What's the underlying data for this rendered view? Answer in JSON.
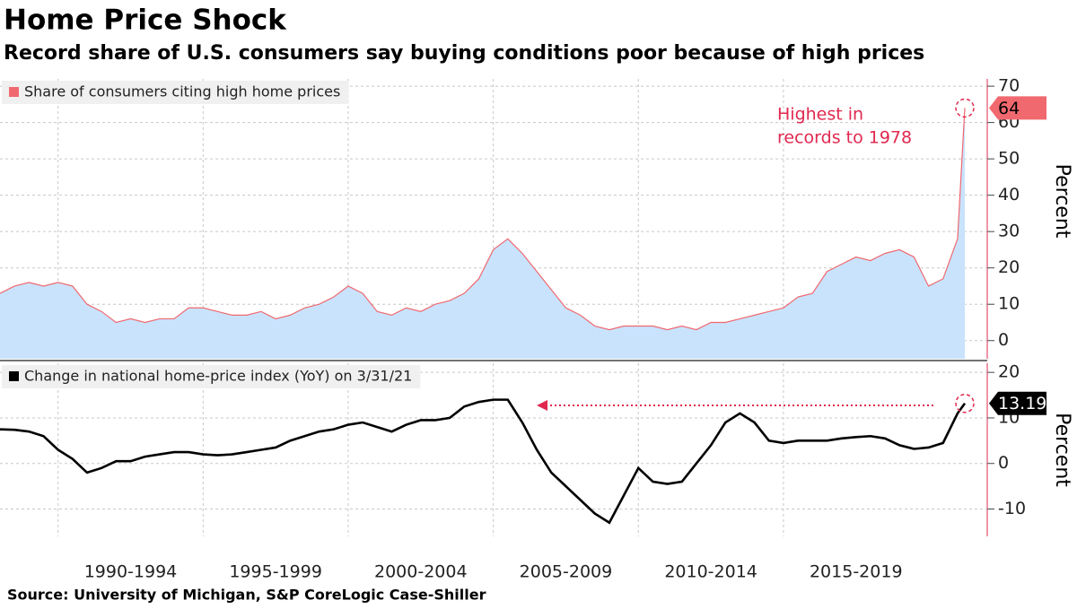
{
  "chart_data": [
    {
      "type": "area",
      "title": "Home Price Shock",
      "subtitle": "Record share of U.S. consumers say buying conditions poor because of high prices",
      "source": "Source: University of Michigan, S&P CoreLogic Case-Shiller",
      "annotation": [
        "Highest in",
        "records to 1978"
      ],
      "y_label": "Percent",
      "xlim": [
        1988,
        2021.25
      ],
      "ylim": [
        -5,
        72
      ],
      "yticks": [
        0,
        10,
        20,
        30,
        40,
        50,
        60,
        70
      ],
      "grid": true,
      "series": [
        {
          "name": "Share of consumers citing high home prices",
          "color": "#f0696f",
          "fill": "#c9e3fd",
          "x": [
            1988,
            1988.5,
            1989,
            1989.5,
            1990,
            1990.5,
            1991,
            1991.5,
            1992,
            1992.5,
            1993,
            1993.5,
            1994,
            1994.5,
            1995,
            1995.5,
            1996,
            1996.5,
            1997,
            1997.5,
            1998,
            1998.5,
            1999,
            1999.5,
            2000,
            2000.5,
            2001,
            2001.5,
            2002,
            2002.5,
            2003,
            2003.5,
            2004,
            2004.5,
            2005,
            2005.5,
            2006,
            2006.5,
            2007,
            2007.5,
            2008,
            2008.5,
            2009,
            2009.5,
            2010,
            2010.5,
            2011,
            2011.5,
            2012,
            2012.5,
            2013,
            2013.5,
            2014,
            2014.5,
            2015,
            2015.5,
            2016,
            2016.5,
            2017,
            2017.5,
            2018,
            2018.5,
            2019,
            2019.5,
            2020,
            2020.5,
            2021,
            2021.25
          ],
          "values": [
            13,
            15,
            16,
            15,
            16,
            15,
            10,
            8,
            5,
            6,
            5,
            6,
            6,
            9,
            9,
            8,
            7,
            7,
            8,
            6,
            7,
            9,
            10,
            12,
            15,
            13,
            8,
            7,
            9,
            8,
            10,
            11,
            13,
            17,
            25,
            28,
            24,
            19,
            14,
            9,
            7,
            4,
            3,
            4,
            4,
            4,
            3,
            4,
            3,
            5,
            5,
            6,
            7,
            8,
            9,
            12,
            13,
            19,
            21,
            23,
            22,
            24,
            25,
            23,
            15,
            17,
            28,
            64
          ],
          "last_label": 64
        }
      ]
    },
    {
      "type": "line",
      "y_label": "Percent",
      "xlim": [
        1988,
        2021.25
      ],
      "xticks": [
        {
          "value": 1990,
          "label": "1990-1994"
        },
        {
          "value": 1995,
          "label": "1995-1999"
        },
        {
          "value": 2000,
          "label": "2000-2004"
        },
        {
          "value": 2005,
          "label": "2005-2009"
        },
        {
          "value": 2010,
          "label": "2010-2014"
        },
        {
          "value": 2015,
          "label": "2015-2019"
        }
      ],
      "ylim": [
        -16,
        22
      ],
      "yticks": [
        -10,
        0,
        10,
        20
      ],
      "grid": true,
      "series": [
        {
          "name": "Change in national home-price index (YoY) on 3/31/21",
          "color": "#000000",
          "x": [
            1988,
            1988.5,
            1989,
            1989.5,
            1990,
            1990.5,
            1991,
            1991.5,
            1992,
            1992.5,
            1993,
            1993.5,
            1994,
            1994.5,
            1995,
            1995.5,
            1996,
            1996.5,
            1997,
            1997.5,
            1998,
            1998.5,
            1999,
            1999.5,
            2000,
            2000.5,
            2001,
            2001.5,
            2002,
            2002.5,
            2003,
            2003.5,
            2004,
            2004.5,
            2005,
            2005.5,
            2006,
            2006.5,
            2007,
            2007.5,
            2008,
            2008.5,
            2009,
            2009.5,
            2010,
            2010.5,
            2011,
            2011.5,
            2012,
            2012.5,
            2013,
            2013.5,
            2014,
            2014.5,
            2015,
            2015.5,
            2016,
            2016.5,
            2017,
            2017.5,
            2018,
            2018.5,
            2019,
            2019.5,
            2020,
            2020.5,
            2021,
            2021.25
          ],
          "values": [
            7.5,
            7.4,
            7,
            6,
            3,
            1,
            -2,
            -1,
            0.5,
            0.5,
            1.5,
            2,
            2.5,
            2.5,
            2,
            1.8,
            2,
            2.5,
            3,
            3.5,
            5,
            6,
            7,
            7.5,
            8.5,
            9,
            8,
            7,
            8.5,
            9.5,
            9.5,
            10,
            12.5,
            13.5,
            14,
            14,
            9,
            3,
            -2,
            -5,
            -8,
            -11,
            -13,
            -7,
            -1,
            -4,
            -4.5,
            -4,
            0,
            4,
            9,
            11,
            9,
            5,
            4.5,
            5,
            5,
            5,
            5.5,
            5.8,
            6,
            5.5,
            4,
            3.2,
            3.5,
            4.5,
            11,
            13.19
          ],
          "last_label": 13.19
        }
      ]
    }
  ]
}
